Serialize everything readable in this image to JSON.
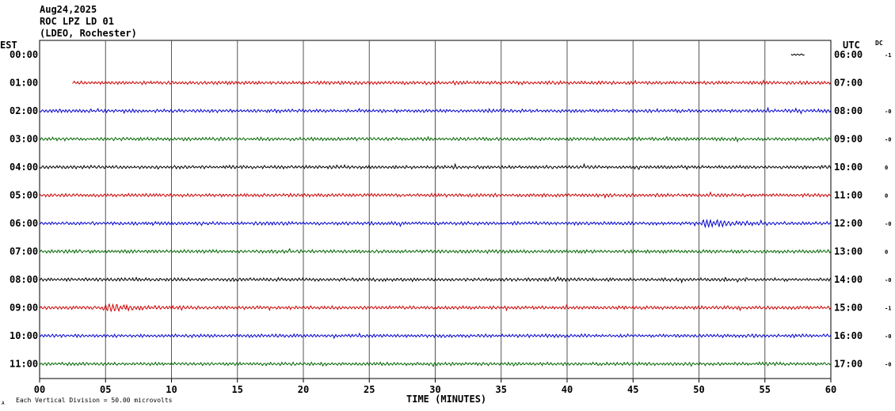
{
  "header": {
    "date": "Aug24,2025",
    "station": "ROC LPZ LD 01",
    "network": "(LDEO, Rochester)"
  },
  "left_timezone": "EST",
  "right_timezone": "UTC",
  "dc_label": "DC",
  "footer": {
    "scale_note": "Each Vertical Division =   50.00 microvolts",
    "corner_mark": "A"
  },
  "chart_data": {
    "type": "line",
    "title": "",
    "xlabel": "TIME (MINUTES)",
    "ylabel": "",
    "xlim": [
      0,
      60
    ],
    "x_ticks": [
      "00",
      "05",
      "10",
      "15",
      "20",
      "25",
      "30",
      "35",
      "40",
      "45",
      "50",
      "55",
      "60"
    ],
    "grid": true,
    "trace_colors": [
      "#cc0000",
      "#0000cc",
      "#006600",
      "#000000"
    ],
    "rows": [
      {
        "est": "00:00",
        "utc": "06:00",
        "dc": "-1",
        "color": "#000000",
        "start_min": 57,
        "end_min": 58,
        "amplitude": 0.2,
        "burst_min": null
      },
      {
        "est": "01:00",
        "utc": "07:00",
        "dc": "",
        "color": "#cc0000",
        "start_min": 2.5,
        "end_min": 60,
        "amplitude": 0.35,
        "burst_min": null
      },
      {
        "est": "02:00",
        "utc": "08:00",
        "dc": "-0",
        "color": "#0000cc",
        "start_min": 0,
        "end_min": 60,
        "amplitude": 0.35,
        "burst_min": null
      },
      {
        "est": "03:00",
        "utc": "09:00",
        "dc": "-0",
        "color": "#006600",
        "start_min": 0,
        "end_min": 60,
        "amplitude": 0.35,
        "burst_min": null
      },
      {
        "est": "04:00",
        "utc": "10:00",
        "dc": "0",
        "color": "#000000",
        "start_min": 0,
        "end_min": 60,
        "amplitude": 0.35,
        "burst_min": null
      },
      {
        "est": "05:00",
        "utc": "11:00",
        "dc": "0",
        "color": "#cc0000",
        "start_min": 0,
        "end_min": 60,
        "amplitude": 0.35,
        "burst_min": null
      },
      {
        "est": "06:00",
        "utc": "12:00",
        "dc": "-0",
        "color": "#0000cc",
        "start_min": 0,
        "end_min": 60,
        "amplitude": 0.35,
        "burst_min": 50.5
      },
      {
        "est": "07:00",
        "utc": "13:00",
        "dc": "0",
        "color": "#006600",
        "start_min": 0,
        "end_min": 60,
        "amplitude": 0.35,
        "burst_min": null
      },
      {
        "est": "08:00",
        "utc": "14:00",
        "dc": "-0",
        "color": "#000000",
        "start_min": 0,
        "end_min": 60,
        "amplitude": 0.35,
        "burst_min": null
      },
      {
        "est": "09:00",
        "utc": "15:00",
        "dc": "-1",
        "color": "#cc0000",
        "start_min": 0,
        "end_min": 60,
        "amplitude": 0.35,
        "burst_min": 5.1
      },
      {
        "est": "10:00",
        "utc": "16:00",
        "dc": "-0",
        "color": "#0000cc",
        "start_min": 0,
        "end_min": 60,
        "amplitude": 0.35,
        "burst_min": null
      },
      {
        "est": "11:00",
        "utc": "17:00",
        "dc": "-0",
        "color": "#006600",
        "start_min": 0,
        "end_min": 60,
        "amplitude": 0.35,
        "burst_min": null
      }
    ]
  }
}
